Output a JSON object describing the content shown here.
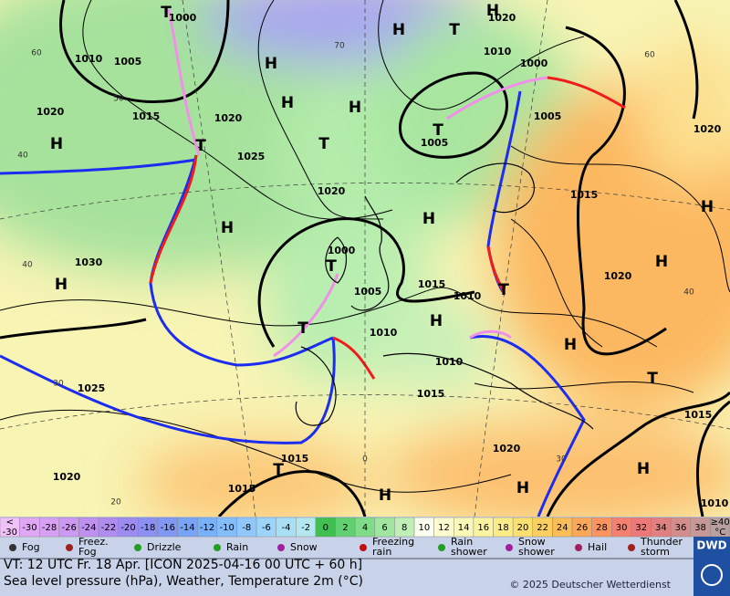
{
  "map": {
    "pressure_labels": [
      "1000",
      "1010",
      "1005",
      "1020",
      "1015",
      "1020",
      "1025",
      "1020",
      "1030",
      "1000",
      "1005",
      "1010",
      "1015",
      "1010",
      "1010",
      "1015",
      "1025",
      "1020",
      "1015",
      "1015",
      "1020",
      "1020",
      "1010",
      "1000",
      "1005",
      "1005",
      "1015",
      "1020",
      "1020",
      "1015",
      "1010"
    ],
    "temperature_labels": [
      "60",
      "50",
      "40",
      "40",
      "30",
      "20",
      "70",
      "60",
      "40",
      "30",
      "0"
    ],
    "centers": [
      "H",
      "T",
      "H",
      "H",
      "H",
      "T",
      "T",
      "H",
      "H",
      "H",
      "T",
      "T",
      "H",
      "H",
      "T",
      "T",
      "H",
      "T",
      "H",
      "H",
      "H",
      "T",
      "H",
      "H",
      "H",
      "T"
    ]
  },
  "legend": {
    "scale_low": {
      "symbol": "<",
      "value": -30
    },
    "scale": [
      {
        "value": -30,
        "color": "#e0a8f4"
      },
      {
        "value": -28,
        "color": "#d8a0f4"
      },
      {
        "value": -26,
        "color": "#cc98f2"
      },
      {
        "value": -24,
        "color": "#c090f0"
      },
      {
        "value": -22,
        "color": "#b08cf0"
      },
      {
        "value": -20,
        "color": "#9c8cf0"
      },
      {
        "value": -18,
        "color": "#8c90f2"
      },
      {
        "value": -16,
        "color": "#8098f4"
      },
      {
        "value": -14,
        "color": "#78a4f8"
      },
      {
        "value": -12,
        "color": "#78b0fa"
      },
      {
        "value": -10,
        "color": "#84bcfc"
      },
      {
        "value": -8,
        "color": "#90c8fc"
      },
      {
        "value": -6,
        "color": "#9cd4fa"
      },
      {
        "value": -4,
        "color": "#a8dff4"
      },
      {
        "value": -2,
        "color": "#b4e8ee"
      },
      {
        "value": 0,
        "color": "#40c050"
      },
      {
        "value": 2,
        "color": "#60d070"
      },
      {
        "value": 4,
        "color": "#80dc88"
      },
      {
        "value": 6,
        "color": "#a0e6a0"
      },
      {
        "value": 8,
        "color": "#c0f0b8"
      },
      {
        "value": 10,
        "color": "#fafff0"
      },
      {
        "value": 12,
        "color": "#fcfcd0"
      },
      {
        "value": 14,
        "color": "#fcf8b8"
      },
      {
        "value": 16,
        "color": "#fcf4a0"
      },
      {
        "value": 18,
        "color": "#fcec88"
      },
      {
        "value": 20,
        "color": "#fce070"
      },
      {
        "value": 22,
        "color": "#fcd060"
      },
      {
        "value": 24,
        "color": "#fcbc58"
      },
      {
        "value": 26,
        "color": "#fca858"
      },
      {
        "value": 28,
        "color": "#fc9460"
      },
      {
        "value": 30,
        "color": "#f48070"
      },
      {
        "value": 32,
        "color": "#ec7878"
      },
      {
        "value": 34,
        "color": "#e08080"
      },
      {
        "value": 36,
        "color": "#d48c8c"
      },
      {
        "value": 38,
        "color": "#c89898"
      }
    ],
    "scale_high": {
      "symbol": "≥40",
      "unit": "°C"
    },
    "weather": [
      "Fog",
      "Freez. Fog",
      "Drizzle",
      "Rain",
      "Snow",
      "Freezing rain",
      "Rain shower",
      "Snow shower",
      "Hail",
      "Thunder storm"
    ],
    "logo": "DWD"
  },
  "footer": {
    "valid_time": "VT: 12 UTC Fr.  18 Apr. [ICON 2025-04-16  00 UTC + 60 h]",
    "description": "Sea level pressure (hPa), Weather, Temperature 2m (°C)",
    "copyright": "© 2025 Deutscher Wetterdienst"
  }
}
